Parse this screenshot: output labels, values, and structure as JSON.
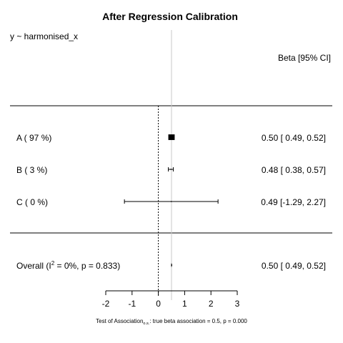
{
  "chart_data": {
    "type": "forest",
    "title": "After Regression Calibration",
    "model_label": "y ~ harmonised_x",
    "estimate_header": "Beta [95% CI]",
    "xlim": [
      -2,
      3
    ],
    "x_ticks": [
      "-2",
      "-1",
      "0",
      "1",
      "2",
      "3"
    ],
    "x_tick_values": [
      -2,
      -1,
      0,
      1,
      2,
      3
    ],
    "null_value": 0,
    "reference_value": 0.5,
    "studies": [
      {
        "label": "A  ( 97 %)",
        "estimate": 0.5,
        "lower": 0.49,
        "upper": 0.52,
        "weight": 97,
        "ci_text": "0.50 [ 0.49, 0.52]"
      },
      {
        "label": "B  ( 3 %)",
        "estimate": 0.48,
        "lower": 0.38,
        "upper": 0.57,
        "weight": 3,
        "ci_text": "0.48 [ 0.38, 0.57]"
      },
      {
        "label": "C  ( 0 %)",
        "estimate": 0.49,
        "lower": -1.29,
        "upper": 2.27,
        "weight": 0,
        "ci_text": "0.49 [-1.29, 2.27]"
      }
    ],
    "overall": {
      "label_prefix": "Overall (I",
      "label_sup": "2",
      "label_suffix": " = 0%, p = 0.833)",
      "estimate": 0.5,
      "lower": 0.49,
      "upper": 0.52,
      "ci_text": "0.50 [ 0.49, 0.52]"
    },
    "footnote": {
      "prefix": "Test of Association",
      "subscript": "o.s.",
      "suffix": ": true beta association = 0.5, p = 0.000"
    }
  }
}
